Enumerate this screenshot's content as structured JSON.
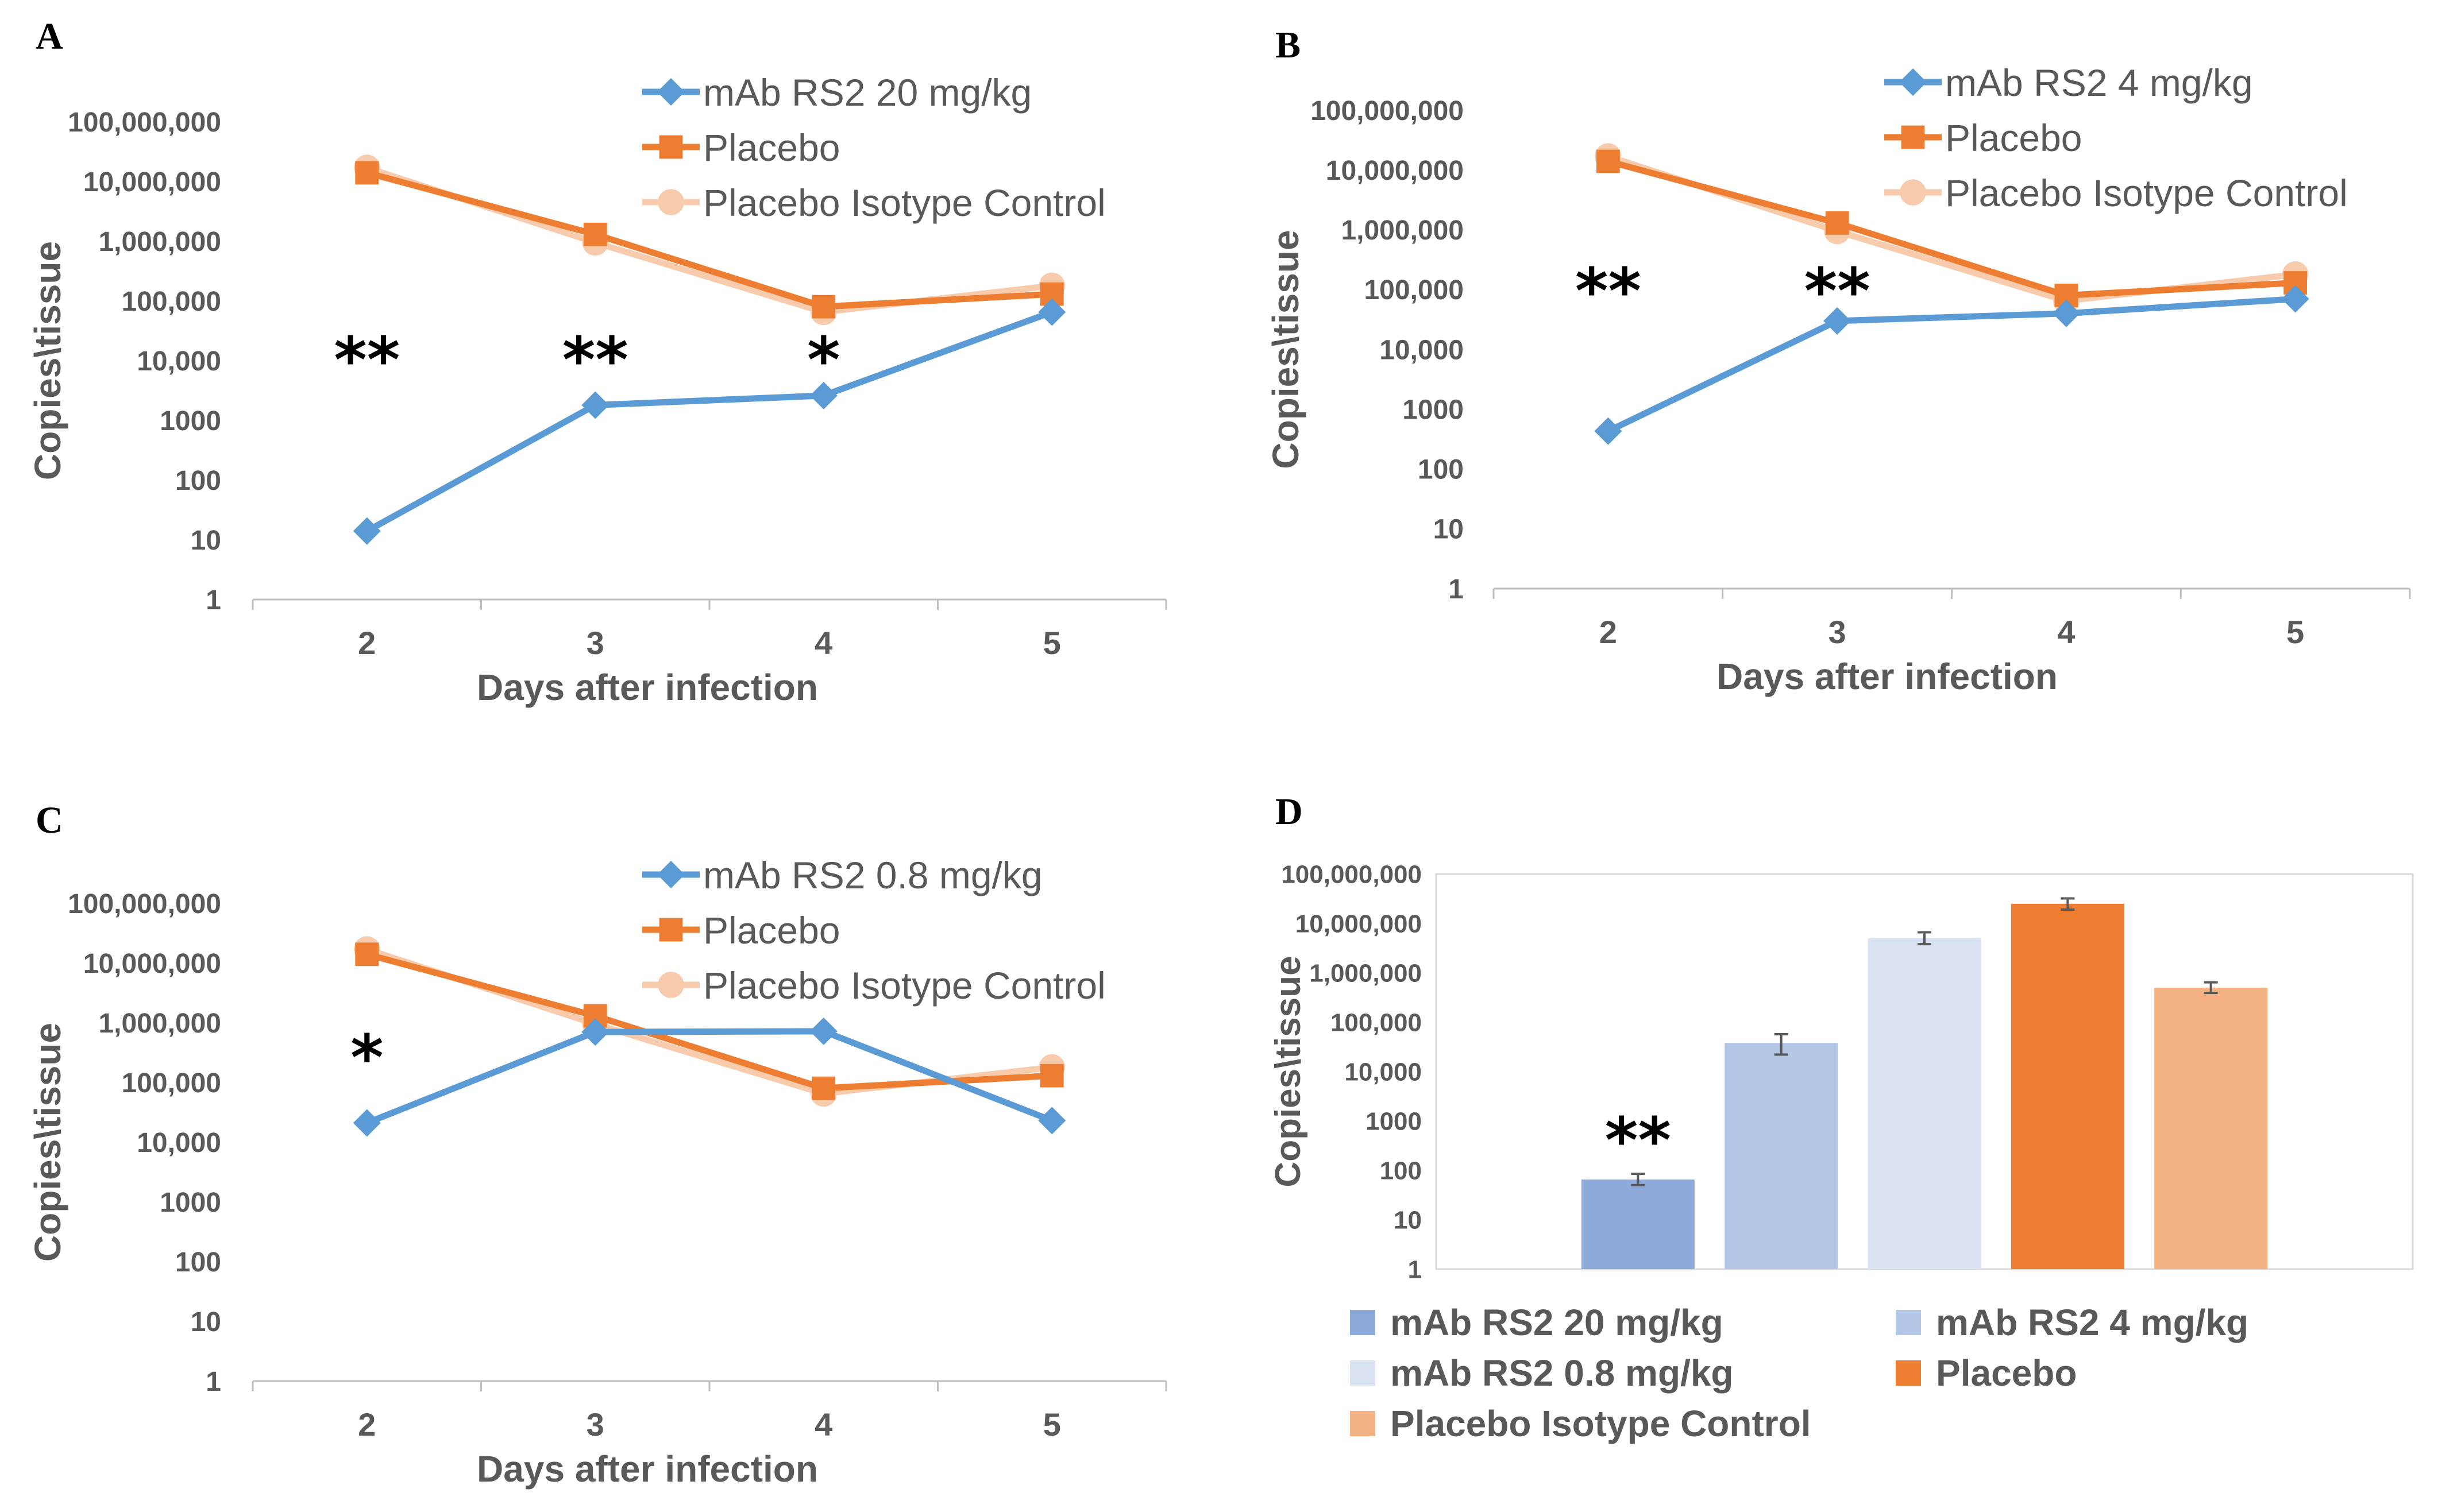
{
  "chart_data": [
    {
      "panel": "A",
      "type": "line",
      "yscale": "log",
      "ylim": [
        1,
        100000000
      ],
      "ytick_labels": [
        "1",
        "10",
        "100",
        "1000",
        "10,000",
        "100,000",
        "1,000,000",
        "10,000,000",
        "100,000,000"
      ],
      "xlabel": "Days after infection",
      "ylabel": "Copies\\tissue",
      "categories": [
        "2",
        "3",
        "4",
        "5"
      ],
      "series": [
        {
          "name": "mAb RS2 20 mg/kg",
          "color": "#5b9bd5",
          "marker": "diamond",
          "values": [
            14,
            1800,
            2600,
            65000
          ]
        },
        {
          "name": "Placebo",
          "color": "#ed7d31",
          "marker": "square",
          "values": [
            14000000,
            1300000,
            80000,
            130000
          ]
        },
        {
          "name": "Placebo Isotype Control",
          "color": "#f8cbad",
          "marker": "circle",
          "values": [
            17000000,
            950000,
            65000,
            180000
          ]
        }
      ],
      "significance": [
        {
          "category": "2",
          "label": "**"
        },
        {
          "category": "3",
          "label": "**"
        },
        {
          "category": "4",
          "label": "*"
        }
      ]
    },
    {
      "panel": "B",
      "type": "line",
      "yscale": "log",
      "ylim": [
        1,
        100000000
      ],
      "ytick_labels": [
        "1",
        "10",
        "100",
        "1000",
        "10,000",
        "100,000",
        "1,000,000",
        "10,000,000",
        "100,000,000"
      ],
      "xlabel": "Days after infection",
      "ylabel": "Copies\\tissue",
      "categories": [
        "2",
        "3",
        "4",
        "5"
      ],
      "series": [
        {
          "name": "mAb RS2 4 mg/kg",
          "color": "#5b9bd5",
          "marker": "diamond",
          "values": [
            430,
            30000,
            40000,
            70000
          ]
        },
        {
          "name": "Placebo",
          "color": "#ed7d31",
          "marker": "square",
          "values": [
            14000000,
            1300000,
            80000,
            130000
          ]
        },
        {
          "name": "Placebo Isotype Control",
          "color": "#f8cbad",
          "marker": "circle",
          "values": [
            17000000,
            950000,
            65000,
            180000
          ]
        }
      ],
      "significance": [
        {
          "category": "2",
          "label": "**"
        },
        {
          "category": "3",
          "label": "**"
        }
      ]
    },
    {
      "panel": "C",
      "type": "line",
      "yscale": "log",
      "ylim": [
        1,
        100000000
      ],
      "ytick_labels": [
        "1",
        "10",
        "100",
        "1000",
        "10,000",
        "100,000",
        "1,000,000",
        "10,000,000",
        "100,000,000"
      ],
      "xlabel": "Days after infection",
      "ylabel": "Copies\\tissue",
      "categories": [
        "2",
        "3",
        "4",
        "5"
      ],
      "series": [
        {
          "name": "mAb RS2 0.8 mg/kg",
          "color": "#5b9bd5",
          "marker": "diamond",
          "values": [
            21000,
            700000,
            720000,
            23000
          ]
        },
        {
          "name": "Placebo",
          "color": "#ed7d31",
          "marker": "square",
          "values": [
            14000000,
            1300000,
            80000,
            130000
          ]
        },
        {
          "name": "Placebo Isotype Control",
          "color": "#f8cbad",
          "marker": "circle",
          "values": [
            17000000,
            950000,
            65000,
            180000
          ]
        }
      ],
      "significance": [
        {
          "category": "2",
          "label": "*"
        }
      ]
    },
    {
      "panel": "D",
      "type": "bar",
      "yscale": "log",
      "ylim": [
        1,
        100000000
      ],
      "ytick_labels": [
        "1",
        "10",
        "100",
        "1000",
        "10,000",
        "100,000",
        "1,000,000",
        "10,000,000",
        "100,000,000"
      ],
      "ylabel": "Copies\\tissue",
      "series": [
        {
          "name": "mAb RS2 20 mg/kg",
          "color": "#8eaadb",
          "value": 65,
          "err_low": 50,
          "err_high": 85
        },
        {
          "name": "mAb RS2 4 mg/kg",
          "color": "#b4c7e7",
          "value": 38000,
          "err_low": 22000,
          "err_high": 57000
        },
        {
          "name": "mAb RS2 0.8 mg/kg",
          "color": "#dae3f3",
          "value": 5000000,
          "err_low": 3800000,
          "err_high": 6600000
        },
        {
          "name": "Placebo",
          "color": "#ed7d31",
          "value": 25000000,
          "err_low": 19000000,
          "err_high": 32000000
        },
        {
          "name": "Placebo Isotype Control",
          "color": "#f4b183",
          "value": 500000,
          "err_low": 390000,
          "err_high": 640000
        }
      ],
      "significance": [
        {
          "series": "mAb RS2 20 mg/kg",
          "label": "**"
        }
      ]
    }
  ]
}
